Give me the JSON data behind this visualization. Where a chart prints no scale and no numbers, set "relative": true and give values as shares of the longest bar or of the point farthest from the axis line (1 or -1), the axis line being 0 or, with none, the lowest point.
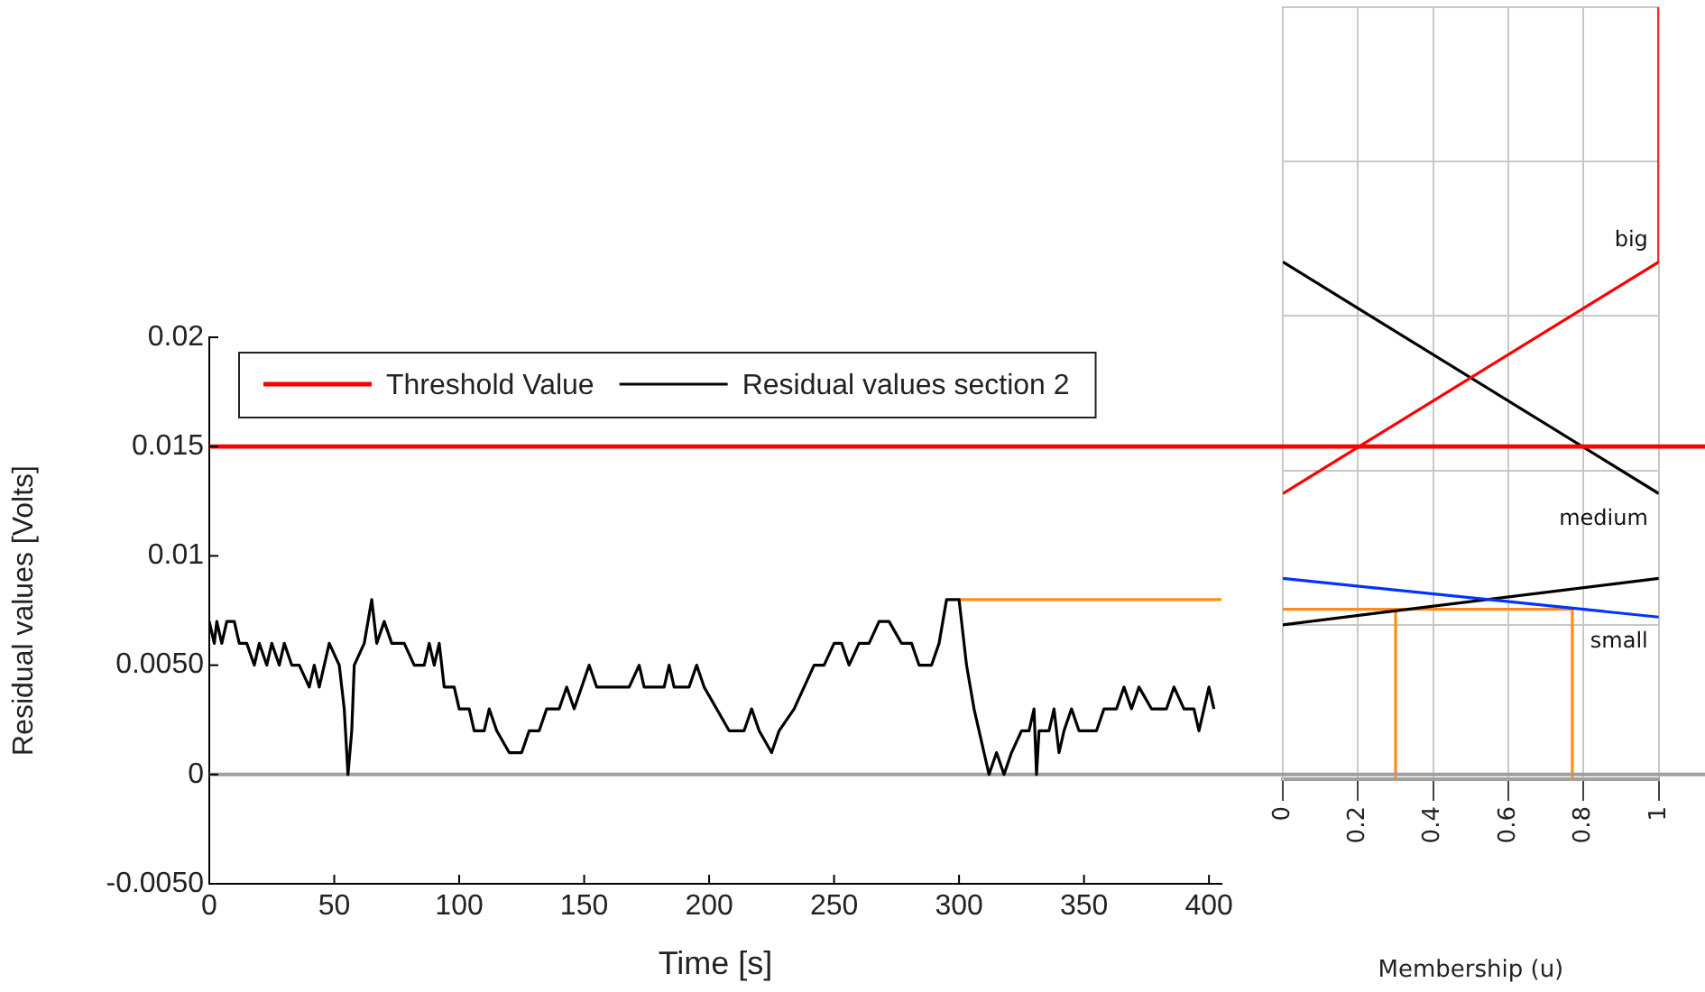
{
  "chart_data": [
    {
      "type": "line",
      "xlabel": "Time [s]",
      "ylabel": "Residual values [Volts]",
      "legend": "top left",
      "xlim": [
        0,
        405
      ],
      "ylim": [
        -0.005,
        0.02
      ],
      "xticks": [
        0,
        50,
        100,
        150,
        200,
        250,
        300,
        350,
        400
      ],
      "yticks": [
        {
          "value": -0.005,
          "label": "-0.0050"
        },
        0,
        {
          "value": 0.005,
          "label": "0.0050"
        },
        0.01,
        0.015,
        0.02
      ],
      "ref_lines": [
        {
          "axis": "y",
          "value": 0.015,
          "label": "Threshold Value",
          "color": "#ff0000"
        },
        {
          "axis": "y",
          "value": 0,
          "color": "#a0a0a0"
        }
      ],
      "series": [
        {
          "name": "Residual values section 2",
          "color": "#000000",
          "x": [
            0,
            2,
            3,
            5,
            7,
            10,
            12,
            15,
            18,
            20,
            23,
            25,
            28,
            30,
            33,
            36,
            40,
            42,
            44,
            48,
            52,
            54,
            55.5,
            57,
            58,
            62,
            65,
            67,
            70,
            73,
            78,
            82,
            86,
            88,
            90,
            92,
            94,
            98,
            100,
            104,
            106,
            110,
            112,
            115,
            120,
            125,
            128,
            132,
            135,
            140,
            143,
            146,
            149,
            152,
            155,
            162,
            168,
            172,
            174,
            182,
            184,
            186,
            192,
            195,
            198,
            203,
            208,
            214,
            217,
            220,
            225,
            228,
            234,
            238,
            242,
            246,
            250,
            253,
            256,
            260,
            264,
            268,
            272,
            277,
            281,
            284,
            289,
            292,
            295,
            298,
            300,
            303,
            306,
            310,
            312,
            315,
            318,
            321,
            325,
            328,
            330,
            331,
            332,
            336,
            338,
            340,
            342,
            345,
            348,
            355,
            358,
            363,
            366,
            369,
            372,
            377,
            383,
            386,
            390,
            394,
            396,
            398,
            400,
            402
          ],
          "values": [
            0.007,
            0.006,
            0.007,
            0.006,
            0.007,
            0.007,
            0.006,
            0.006,
            0.005,
            0.006,
            0.005,
            0.006,
            0.005,
            0.006,
            0.005,
            0.005,
            0.004,
            0.005,
            0.004,
            0.006,
            0.005,
            0.003,
            0,
            0.002,
            0.005,
            0.006,
            0.008,
            0.006,
            0.007,
            0.006,
            0.006,
            0.005,
            0.005,
            0.006,
            0.005,
            0.006,
            0.004,
            0.004,
            0.003,
            0.003,
            0.002,
            0.002,
            0.003,
            0.002,
            0.001,
            0.001,
            0.002,
            0.002,
            0.003,
            0.003,
            0.004,
            0.003,
            0.004,
            0.005,
            0.004,
            0.004,
            0.004,
            0.005,
            0.004,
            0.004,
            0.005,
            0.004,
            0.004,
            0.005,
            0.004,
            0.003,
            0.002,
            0.002,
            0.003,
            0.002,
            0.001,
            0.002,
            0.003,
            0.004,
            0.005,
            0.005,
            0.006,
            0.006,
            0.005,
            0.006,
            0.006,
            0.007,
            0.007,
            0.006,
            0.006,
            0.005,
            0.005,
            0.006,
            0.008,
            0.008,
            0.008,
            0.005,
            0.003,
            0.001,
            0,
            0.001,
            0,
            0.001,
            0.002,
            0.002,
            0.003,
            0,
            0.002,
            0.002,
            0.003,
            0.001,
            0.002,
            0.003,
            0.002,
            0.002,
            0.003,
            0.003,
            0.004,
            0.003,
            0.004,
            0.003,
            0.003,
            0.004,
            0.003,
            0.003,
            0.002,
            0.003,
            0.004,
            0.003
          ]
        },
        {
          "color": "#ff8c1a",
          "x": [
            300,
            405
          ],
          "values": [
            0.008,
            0.008
          ]
        }
      ]
    },
    {
      "type": "line",
      "xlabel": "Membership (u)",
      "grid": true,
      "relative": true,
      "xlim": [
        0,
        1
      ],
      "xticks": [
        0,
        0.2,
        0.4,
        0.6,
        0.8,
        1
      ],
      "series": [
        {
          "name": "big",
          "color": "#ff0000",
          "x": [
            0,
            1,
            1
          ],
          "values": [
            0.37,
            0.67,
            1
          ]
        },
        {
          "name": "medium",
          "color": "#000000",
          "x": [
            0,
            1
          ],
          "values": [
            0.67,
            0.37
          ]
        },
        {
          "name": "small",
          "color": "#0033ff",
          "x": [
            0,
            1
          ],
          "values": [
            0.26,
            0.21
          ]
        },
        {
          "color": "#000000",
          "x": [
            0,
            1
          ],
          "values": [
            0.2,
            0.26
          ]
        },
        {
          "color": "#ff8c1a",
          "x": [
            0,
            0.77
          ],
          "values": [
            0.22,
            0.22
          ]
        },
        {
          "color": "#ff8c1a",
          "x": [
            0.3,
            0.3
          ],
          "values": [
            0.22,
            0
          ]
        },
        {
          "color": "#ff8c1a",
          "x": [
            0.77,
            0.77
          ],
          "values": [
            0.22,
            0
          ]
        }
      ]
    }
  ]
}
